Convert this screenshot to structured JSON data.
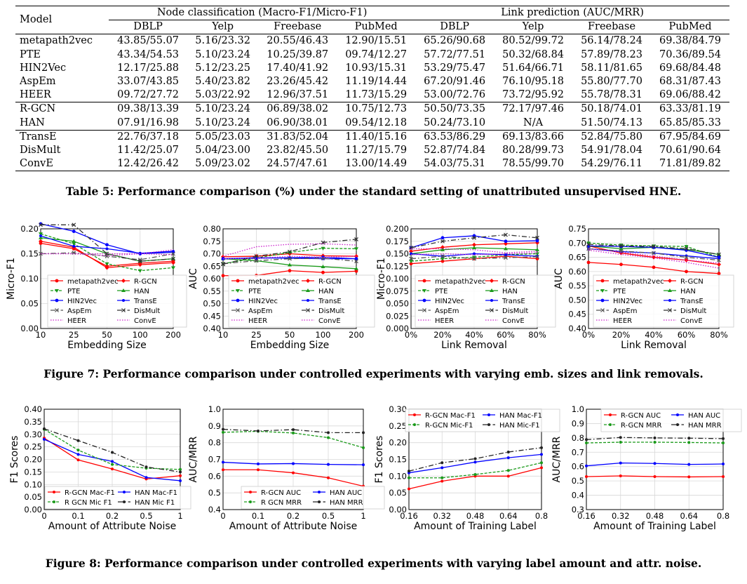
{
  "table": {
    "model_header": "Model",
    "group_headers": [
      "Node classification (Macro-F1/Micro-F1)",
      "Link prediction (AUC/MRR)"
    ],
    "sub_headers": [
      "DBLP",
      "Yelp",
      "Freebase",
      "PubMed",
      "DBLP",
      "Yelp",
      "Freebase",
      "PubMed"
    ],
    "rows": [
      {
        "model": "metapath2vec",
        "cells": [
          "43.85/55.07",
          "5.16/23.32",
          "20.55/46.43",
          "12.90/15.51",
          "65.26/90.68",
          "80.52/99.72",
          "56.14/78.24",
          "69.38/84.79"
        ]
      },
      {
        "model": "PTE",
        "cells": [
          "43.34/54.53",
          "5.10/23.24",
          "10.25/39.87",
          "09.74/12.27",
          "57.72/77.51",
          "50.32/68.84",
          "57.89/78.23",
          "70.36/89.54"
        ]
      },
      {
        "model": "HIN2Vec",
        "cells": [
          "12.17/25.88",
          "5.12/23.25",
          "17.40/41.92",
          "10.93/15.31",
          "53.29/75.47",
          "51.64/66.71",
          "58.11/81.65",
          "69.68/84.48"
        ]
      },
      {
        "model": "AspEm",
        "cells": [
          "33.07/43.85",
          "5.40/23.82",
          "23.26/45.42",
          "11.19/14.44",
          "67.20/91.46",
          "76.10/95.18",
          "55.80/77.70",
          "68.31/87.43"
        ]
      },
      {
        "model": "HEER",
        "cells": [
          "09.72/27.72",
          "5.03/22.92",
          "12.96/37.51",
          "11.73/15.29",
          "53.00/72.76",
          "73.72/95.92",
          "55.78/78.31",
          "69.06/88.42"
        ]
      },
      {
        "model": "R-GCN",
        "cells": [
          "09.38/13.39",
          "5.10/23.24",
          "06.89/38.02",
          "10.75/12.73",
          "50.50/73.35",
          "72.17/97.46",
          "50.18/74.01",
          "63.33/81.19"
        ]
      },
      {
        "model": "HAN",
        "cells": [
          "07.91/16.98",
          "5.10/23.24",
          "06.90/38.01",
          "09.54/12.18",
          "50.24/73.10",
          "N/A",
          "51.50/74.13",
          "65.85/85.33"
        ]
      },
      {
        "model": "TransE",
        "cells": [
          "22.76/37.18",
          "5.05/23.03",
          "31.83/52.04",
          "11.40/15.16",
          "63.53/86.29",
          "69.13/83.66",
          "52.84/75.80",
          "67.95/84.69"
        ]
      },
      {
        "model": "DisMult",
        "cells": [
          "11.42/25.07",
          "5.04/23.00",
          "23.82/45.50",
          "11.27/15.79",
          "52.87/74.84",
          "80.28/99.73",
          "54.91/78.04",
          "70.61/90.64"
        ]
      },
      {
        "model": "ConvE",
        "cells": [
          "12.42/26.42",
          "5.09/23.02",
          "24.57/47.61",
          "13.00/14.49",
          "54.03/75.31",
          "78.55/99.70",
          "54.29/76.11",
          "71.81/89.82"
        ]
      }
    ]
  },
  "captions": {
    "table5": "Table 5: Performance comparison (%) under the standard setting of unattributed unsupervised HNE.",
    "figure7": "Figure 7: Performance comparison under controlled experiments with varying emb. sizes and link removals.",
    "figure8": "Figure 8: Performance comparison under controlled experiments with varying label amount and attr. noise."
  },
  "colors": {
    "metapath2vec": "#ff0000",
    "PTE": "#1a9a1a",
    "HIN2Vec": "#0000ff",
    "AspEm": "#555555",
    "HEER": "#cc22cc",
    "R-GCN": "#ff0000",
    "HAN": "#1a9a1a",
    "TransE": "#0000ff",
    "DisMult": "#444444",
    "ConvE": "#cc22cc"
  },
  "chart_data": [
    {
      "type": "line",
      "title": "",
      "xlabel": "Embedding Size",
      "ylabel": "Micro-F1",
      "categories": [
        "10",
        "25",
        "50",
        "100",
        "200"
      ],
      "ylim": [
        0,
        0.2
      ],
      "yticks": [
        "0.00",
        "0.05",
        "0.10",
        "0.15",
        "0.20"
      ],
      "legend": "lower-center",
      "series": [
        {
          "name": "metapath2vec",
          "values": [
            0.171,
            0.16,
            0.125,
            0.131,
            0.135
          ]
        },
        {
          "name": "R-GCN",
          "values": [
            0.175,
            0.163,
            0.122,
            0.128,
            0.132
          ]
        },
        {
          "name": "PTE",
          "values": [
            0.19,
            0.17,
            0.13,
            0.116,
            0.122
          ]
        },
        {
          "name": "HAN",
          "values": [
            0.182,
            0.175,
            0.15,
            0.135,
            0.14
          ]
        },
        {
          "name": "HIN2Vec",
          "values": [
            0.21,
            0.195,
            0.168,
            0.15,
            0.153
          ]
        },
        {
          "name": "TransE",
          "values": [
            0.186,
            0.165,
            0.16,
            0.151,
            0.155
          ]
        },
        {
          "name": "AspEm",
          "values": [
            0.15,
            0.152,
            0.145,
            0.138,
            0.15
          ]
        },
        {
          "name": "DisMult",
          "values": [
            0.208,
            0.208,
            0.15,
            0.135,
            0.14
          ]
        },
        {
          "name": "HEER",
          "values": [
            0.15,
            0.15,
            0.15,
            0.15,
            0.148
          ]
        },
        {
          "name": "ConvE",
          "values": [
            0.15,
            0.15,
            0.146,
            0.15,
            0.158
          ]
        }
      ]
    },
    {
      "type": "line",
      "title": "",
      "xlabel": "Embedding Size",
      "ylabel": "AUC",
      "categories": [
        "10",
        "25",
        "50",
        "100",
        "200"
      ],
      "ylim": [
        0.4,
        0.8
      ],
      "yticks": [
        "0.40",
        "0.45",
        "0.50",
        "0.55",
        "0.60",
        "0.65",
        "0.70",
        "0.75",
        "0.80"
      ],
      "legend": "lower-center",
      "series": [
        {
          "name": "metapath2vec",
          "values": [
            0.612,
            0.613,
            0.632,
            0.625,
            0.63
          ]
        },
        {
          "name": "R-GCN",
          "values": [
            0.688,
            0.69,
            0.7,
            0.692,
            0.69
          ]
        },
        {
          "name": "PTE",
          "values": [
            0.66,
            0.683,
            0.705,
            0.722,
            0.72
          ]
        },
        {
          "name": "HAN",
          "values": [
            0.68,
            0.672,
            0.655,
            0.648,
            0.64
          ]
        },
        {
          "name": "HIN2Vec",
          "values": [
            0.68,
            0.682,
            0.684,
            0.686,
            0.68
          ]
        },
        {
          "name": "TransE",
          "values": [
            0.68,
            0.684,
            0.682,
            0.68,
            0.68
          ]
        },
        {
          "name": "AspEm",
          "values": [
            0.66,
            0.672,
            0.68,
            0.682,
            0.67
          ]
        },
        {
          "name": "DisMult",
          "values": [
            0.658,
            0.69,
            0.708,
            0.745,
            0.758
          ]
        },
        {
          "name": "HEER",
          "values": [
            0.68,
            0.682,
            0.69,
            0.686,
            0.69
          ]
        },
        {
          "name": "ConvE",
          "values": [
            0.69,
            0.728,
            0.738,
            0.74,
            0.735
          ]
        }
      ]
    },
    {
      "type": "line",
      "title": "",
      "xlabel": "Link Removal",
      "ylabel": "Micro-F1",
      "categories": [
        "0%",
        "20%",
        "40%",
        "60%",
        "80%"
      ],
      "ylim": [
        0,
        0.2
      ],
      "yticks": [
        "0.000",
        "0.025",
        "0.050",
        "0.075",
        "0.100",
        "0.125",
        "0.150",
        "0.175",
        "0.200"
      ],
      "legend": "lower-center",
      "series": [
        {
          "name": "metapath2vec",
          "values": [
            0.13,
            0.135,
            0.14,
            0.145,
            0.14
          ]
        },
        {
          "name": "R-GCN",
          "values": [
            0.155,
            0.163,
            0.168,
            0.17,
            0.172
          ]
        },
        {
          "name": "PTE",
          "values": [
            0.135,
            0.14,
            0.143,
            0.148,
            0.15
          ]
        },
        {
          "name": "HAN",
          "values": [
            0.15,
            0.158,
            0.162,
            0.16,
            0.158
          ]
        },
        {
          "name": "HIN2Vec",
          "values": [
            0.162,
            0.182,
            0.186,
            0.175,
            0.176
          ]
        },
        {
          "name": "TransE",
          "values": [
            0.15,
            0.145,
            0.15,
            0.148,
            0.145
          ]
        },
        {
          "name": "AspEm",
          "values": [
            0.14,
            0.145,
            0.14,
            0.142,
            0.144
          ]
        },
        {
          "name": "DisMult",
          "values": [
            0.162,
            0.175,
            0.182,
            0.188,
            0.182
          ]
        },
        {
          "name": "HEER",
          "values": [
            0.148,
            0.15,
            0.148,
            0.15,
            0.152
          ]
        },
        {
          "name": "ConvE",
          "values": [
            0.16,
            0.16,
            0.158,
            0.152,
            0.155
          ]
        }
      ]
    },
    {
      "type": "line",
      "title": "",
      "xlabel": "Link Removal",
      "ylabel": "AUC",
      "categories": [
        "0%",
        "20%",
        "40%",
        "60%",
        "80%"
      ],
      "ylim": [
        0.4,
        0.75
      ],
      "yticks": [
        "0.40",
        "0.45",
        "0.50",
        "0.55",
        "0.60",
        "0.65",
        "0.70",
        "0.75"
      ],
      "legend": "lower-center",
      "series": [
        {
          "name": "metapath2vec",
          "values": [
            0.632,
            0.625,
            0.615,
            0.6,
            0.593
          ]
        },
        {
          "name": "R-GCN",
          "values": [
            0.69,
            0.665,
            0.65,
            0.64,
            0.625
          ]
        },
        {
          "name": "PTE",
          "values": [
            0.7,
            0.693,
            0.69,
            0.688,
            0.65
          ]
        },
        {
          "name": "HAN",
          "values": [
            0.69,
            0.68,
            0.685,
            0.678,
            0.66
          ]
        },
        {
          "name": "HIN2Vec",
          "values": [
            0.69,
            0.688,
            0.685,
            0.675,
            0.65
          ]
        },
        {
          "name": "TransE",
          "values": [
            0.68,
            0.67,
            0.665,
            0.655,
            0.645
          ]
        },
        {
          "name": "AspEm",
          "values": [
            0.68,
            0.672,
            0.665,
            0.65,
            0.64
          ]
        },
        {
          "name": "DisMult",
          "values": [
            0.695,
            0.69,
            0.688,
            0.68,
            0.66
          ]
        },
        {
          "name": "HEER",
          "values": [
            0.68,
            0.668,
            0.655,
            0.64,
            0.63
          ]
        },
        {
          "name": "ConvE",
          "values": [
            0.675,
            0.66,
            0.648,
            0.632,
            0.612
          ]
        }
      ]
    },
    {
      "type": "line",
      "title": "",
      "xlabel": "Amount of Attribute Noise",
      "ylabel": "F1 Scores",
      "categories": [
        "0",
        "0.1",
        "0.2",
        "0.5",
        "1"
      ],
      "ylim": [
        0,
        0.4
      ],
      "yticks": [
        "0.00",
        "0.05",
        "0.10",
        "0.15",
        "0.20",
        "0.25",
        "0.30",
        "0.35",
        "0.40"
      ],
      "legend": "bottom",
      "series": [
        {
          "name": "R-GCN Mac-F1",
          "values": [
            0.285,
            0.198,
            0.162,
            0.122,
            0.135
          ]
        },
        {
          "name": "HAN Mac-F1",
          "values": [
            0.28,
            0.22,
            0.192,
            0.128,
            0.115
          ]
        },
        {
          "name": "R GCN Mic F1",
          "values": [
            0.32,
            0.237,
            0.18,
            0.165,
            0.16
          ]
        },
        {
          "name": "HAN Mic F1",
          "values": [
            0.322,
            0.275,
            0.228,
            0.17,
            0.15
          ]
        }
      ]
    },
    {
      "type": "line",
      "title": "",
      "xlabel": "Amount of Attribute Noise",
      "ylabel": "AUC/MRR",
      "categories": [
        "0",
        "0.1",
        "0.2",
        "0.5",
        "1"
      ],
      "ylim": [
        0.4,
        1.0
      ],
      "yticks": [
        "0.4",
        "0.5",
        "0.6",
        "0.7",
        "0.8",
        "0.9",
        "1.0"
      ],
      "legend": "bottom",
      "series": [
        {
          "name": "R-GCN AUC",
          "values": [
            0.638,
            0.638,
            0.62,
            0.59,
            0.54
          ]
        },
        {
          "name": "HAN AUC",
          "values": [
            0.683,
            0.673,
            0.675,
            0.67,
            0.668
          ]
        },
        {
          "name": "R GCN MRR",
          "values": [
            0.862,
            0.868,
            0.858,
            0.83,
            0.77
          ]
        },
        {
          "name": "HAN MRR",
          "values": [
            0.88,
            0.87,
            0.878,
            0.86,
            0.86
          ]
        }
      ]
    },
    {
      "type": "line",
      "title": "",
      "xlabel": "Amount of Training Label",
      "ylabel": "F1 Scores",
      "categories": [
        "0.16",
        "0.32",
        "0.48",
        "0.64",
        "0.8"
      ],
      "ylim": [
        0,
        0.3
      ],
      "yticks": [
        "0.00",
        "0.05",
        "0.10",
        "0.15",
        "0.20",
        "0.25",
        "0.30"
      ],
      "legend": "top",
      "series": [
        {
          "name": "R-GCN Mac-F1",
          "values": [
            0.062,
            0.085,
            0.1,
            0.1,
            0.125
          ]
        },
        {
          "name": "HAN Mac-F1",
          "values": [
            0.11,
            0.125,
            0.142,
            0.155,
            0.165
          ]
        },
        {
          "name": "R-GCN Mic-F1",
          "values": [
            0.095,
            0.095,
            0.105,
            0.117,
            0.14
          ]
        },
        {
          "name": "HAN Mic-F1",
          "values": [
            0.115,
            0.14,
            0.152,
            0.172,
            0.185
          ]
        }
      ]
    },
    {
      "type": "line",
      "title": "",
      "xlabel": "Amount of Training Label",
      "ylabel": "AUC/MRR",
      "categories": [
        "0.16",
        "0.32",
        "0.48",
        "0.64",
        "0.8"
      ],
      "ylim": [
        0.3,
        1.0
      ],
      "yticks": [
        "0.3",
        "0.4",
        "0.5",
        "0.6",
        "0.7",
        "0.8",
        "0.9",
        "1.0"
      ],
      "legend": "top",
      "series": [
        {
          "name": "R-GCN AUC",
          "values": [
            0.53,
            0.535,
            0.53,
            0.528,
            0.53
          ]
        },
        {
          "name": "HAN AUC",
          "values": [
            0.605,
            0.625,
            0.622,
            0.615,
            0.618
          ]
        },
        {
          "name": "R-GCN MRR",
          "values": [
            0.765,
            0.77,
            0.77,
            0.768,
            0.765
          ]
        },
        {
          "name": "HAN MRR",
          "values": [
            0.788,
            0.803,
            0.8,
            0.798,
            0.795
          ]
        }
      ]
    }
  ]
}
